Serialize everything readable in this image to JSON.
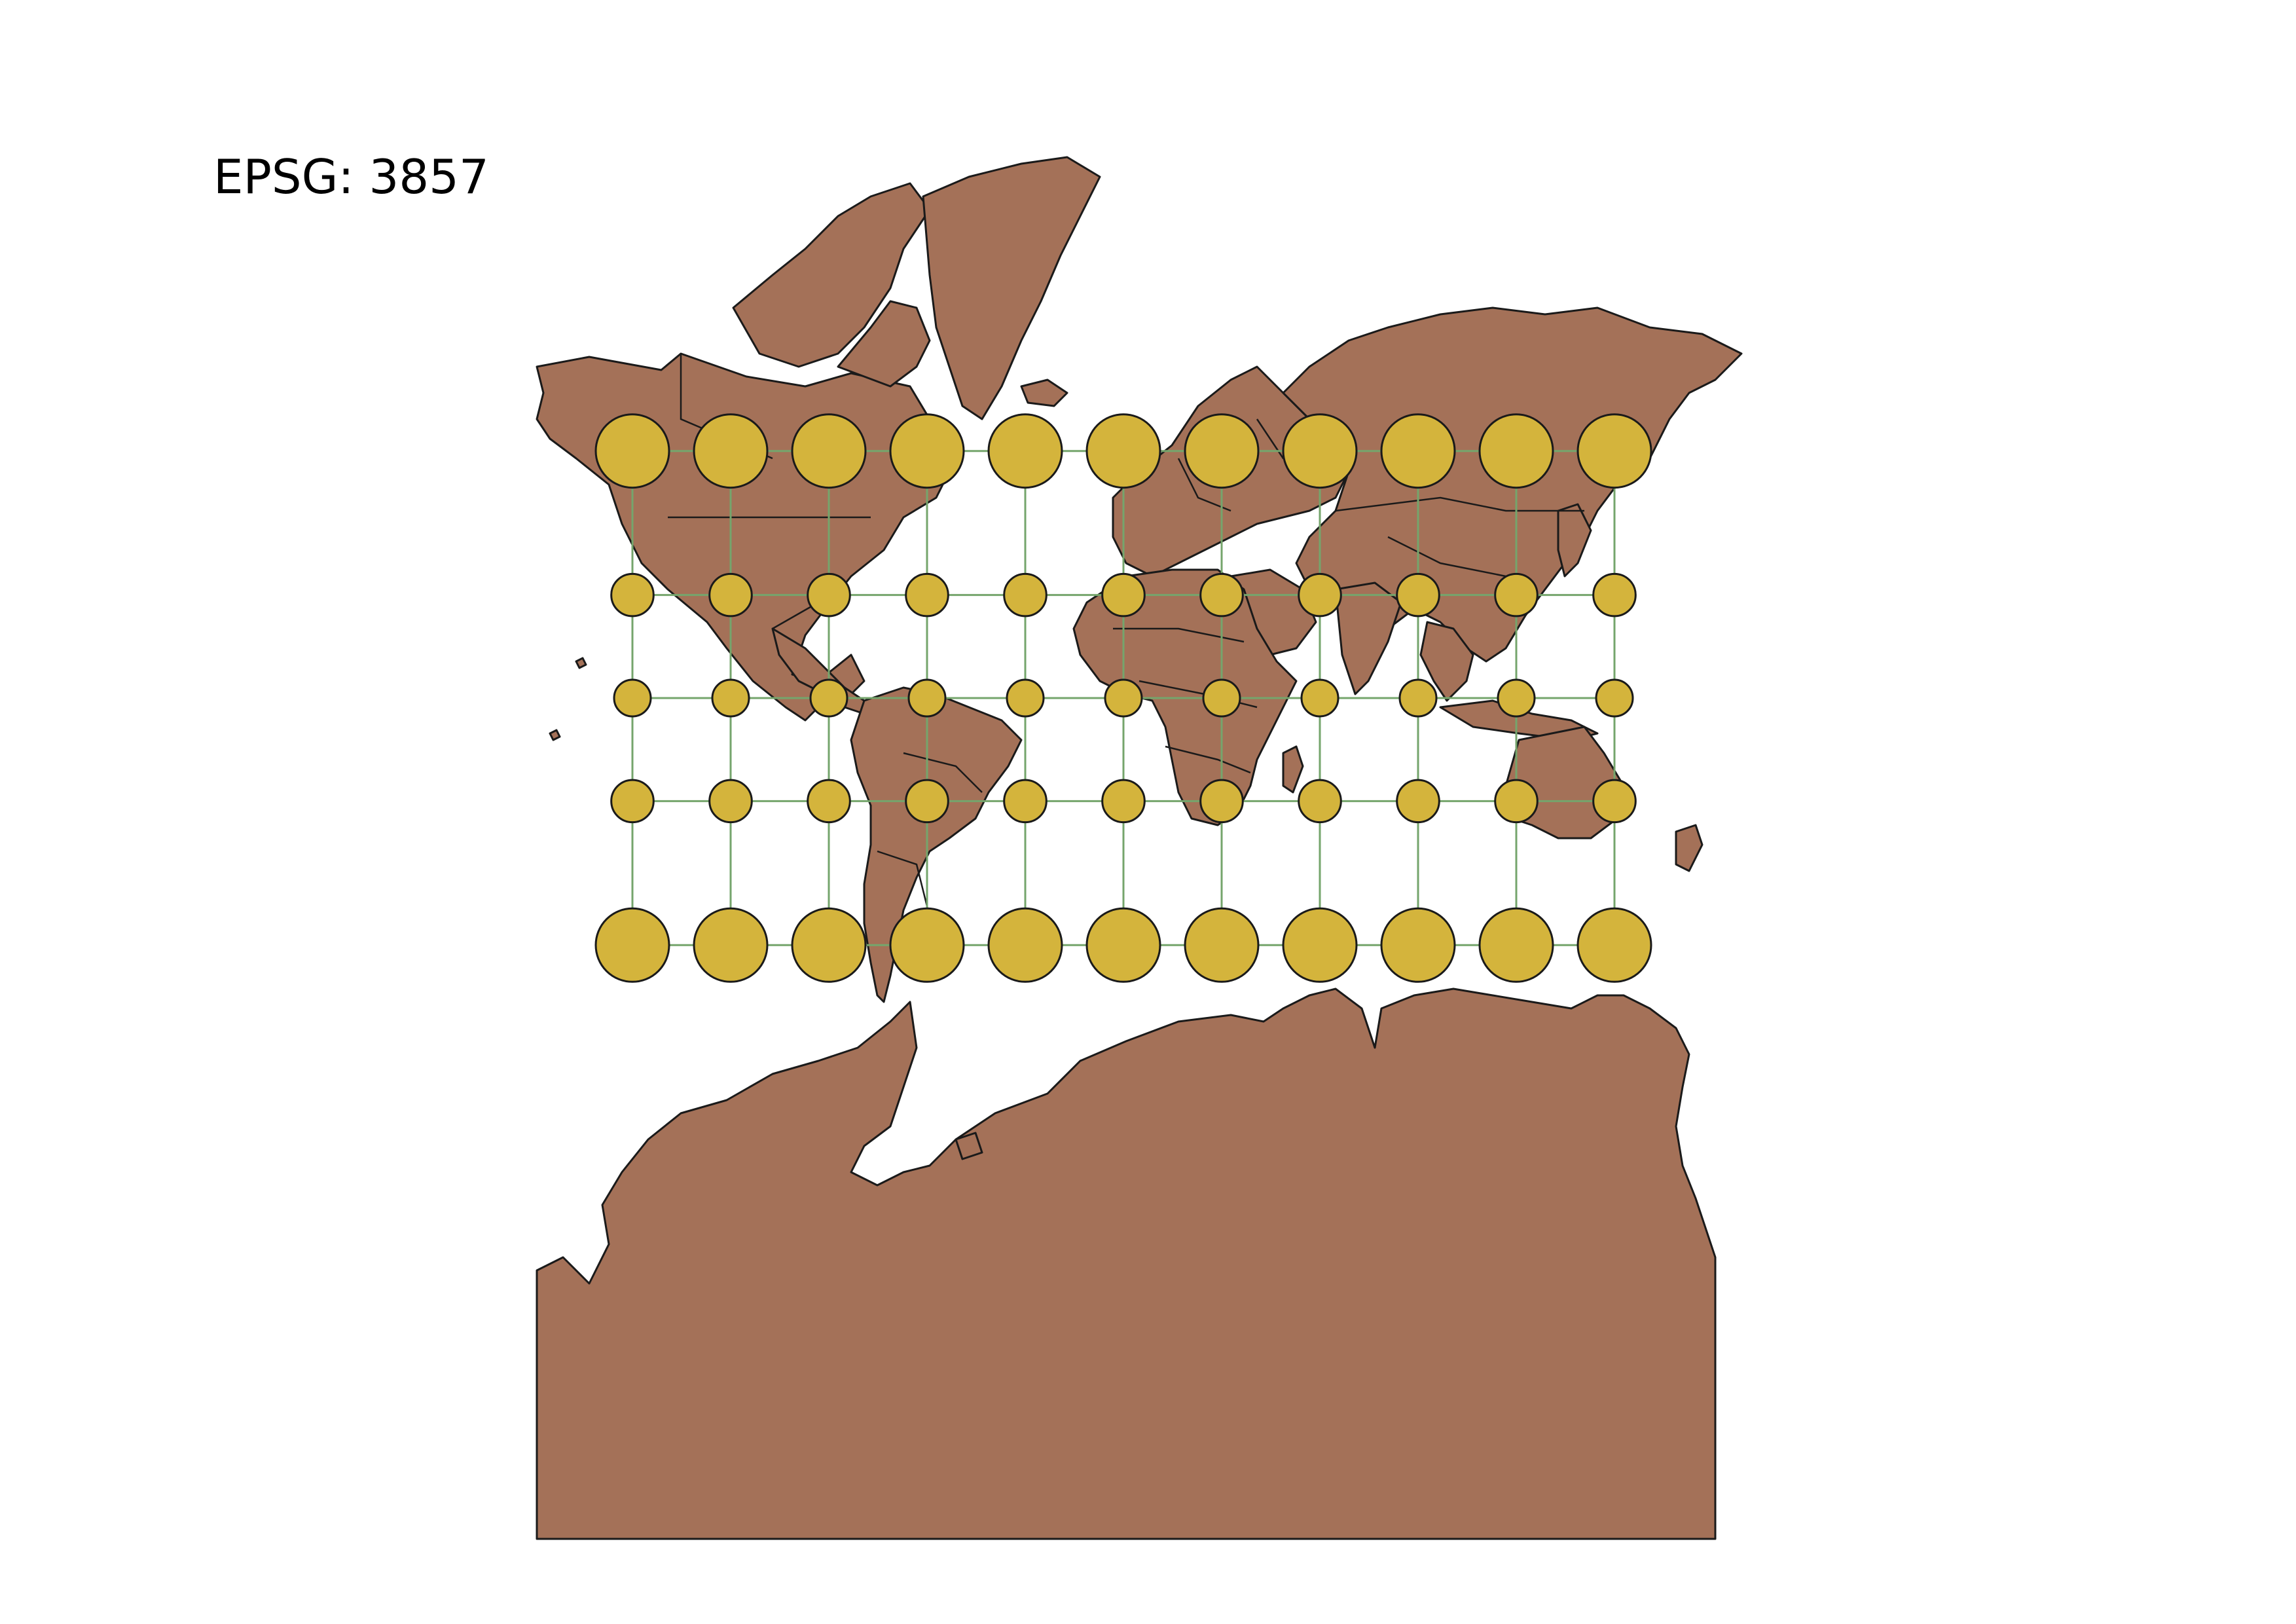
{
  "map": {
    "title": "EPSG: 3857",
    "colors": {
      "land": "#a47158",
      "circle": "#d4b43c",
      "graticule": "#75a56c",
      "outline": "#1a1a1a",
      "background": "#ffffff"
    },
    "indicatrix_grid": {
      "longitudes": [
        -150,
        -120,
        -90,
        -60,
        -30,
        0,
        30,
        60,
        90,
        120,
        150
      ],
      "latitudes": [
        60,
        30,
        0,
        -30,
        -60
      ]
    }
  }
}
